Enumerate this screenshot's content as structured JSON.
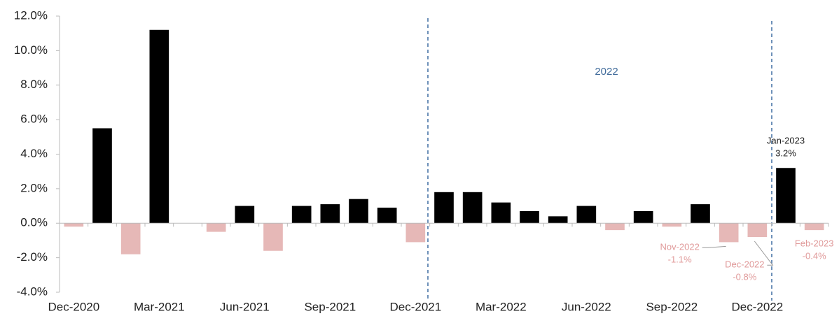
{
  "chart_data": {
    "type": "bar",
    "categories": [
      "Dec-2020",
      null,
      null,
      "Mar-2021",
      null,
      null,
      "Jun-2021",
      null,
      null,
      "Sep-2021",
      null,
      null,
      "Dec-2021",
      null,
      null,
      "Mar-2022",
      null,
      null,
      "Jun-2022",
      null,
      null,
      "Sep-2022",
      null,
      null,
      "Dec-2022",
      null,
      null
    ],
    "values": [
      -0.2,
      5.5,
      -1.8,
      11.2,
      0,
      -0.5,
      1.0,
      -1.6,
      1.0,
      1.1,
      1.4,
      0.9,
      -1.1,
      1.8,
      1.8,
      1.2,
      0.7,
      0.4,
      1.0,
      -0.4,
      0.7,
      -0.2,
      1.1,
      -1.1,
      -0.8,
      3.2,
      -0.4
    ],
    "value_labels": [
      null,
      null,
      null,
      null,
      null,
      null,
      null,
      null,
      null,
      null,
      null,
      null,
      null,
      null,
      null,
      null,
      null,
      null,
      null,
      null,
      null,
      null,
      null,
      "-1.1%",
      "-0.8%",
      "3.2%",
      "-0.4%"
    ],
    "point_labels": [
      null,
      null,
      null,
      null,
      null,
      null,
      null,
      null,
      null,
      null,
      null,
      null,
      null,
      null,
      null,
      null,
      null,
      null,
      null,
      null,
      null,
      null,
      null,
      "Nov-2022",
      "Dec-2022",
      "Jan-2023",
      "Feb-2023"
    ],
    "color": "#000000",
    "negative_color": "#e6b8b7",
    "annotations": [
      "2022"
    ],
    "ylim": [
      -4,
      12
    ],
    "yticks": [
      {
        "value": -4,
        "label": "-4.0%"
      },
      {
        "value": -2,
        "label": "-2.0%"
      },
      {
        "value": 0,
        "label": "0.0%"
      },
      {
        "value": 2,
        "label": "2.0%"
      },
      {
        "value": 4,
        "label": "4.0%"
      },
      {
        "value": 6,
        "label": "6.0%"
      },
      {
        "value": 8,
        "label": "8.0%"
      },
      {
        "value": 10,
        "label": "10.0%"
      },
      {
        "value": 12,
        "label": "12.0%"
      }
    ],
    "grid": false
  }
}
